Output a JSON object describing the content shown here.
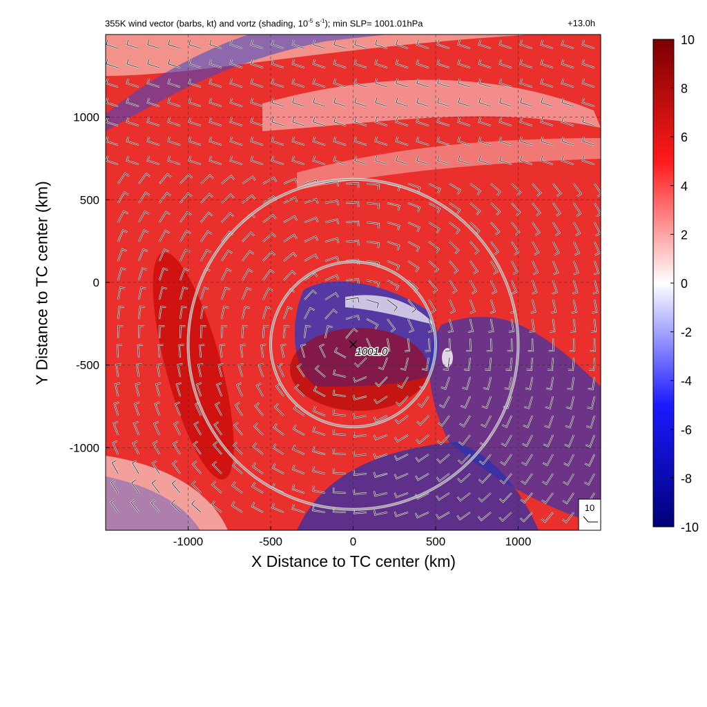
{
  "title": {
    "prefix": "355K wind vector (barbs, kt) and vortz (shading, 10",
    "exp1": "-5",
    "middle": " s",
    "exp2": "-1",
    "suffix": "); min SLP= 1001.01hPa"
  },
  "forecast_hour": "+13.0h",
  "colors": {
    "positive_max": "#7a0000",
    "positive": "#ff1a1a",
    "neutral": "#ffffff",
    "negative": "#1a1aff",
    "negative_max": "#00007a",
    "range_ring": "#9a9a9a"
  },
  "chart_data": {
    "type": "heatmap",
    "xlabel": "X Distance to TC center (km)",
    "ylabel": "Y Distance to TC center (km)",
    "xlim": [
      -1500,
      1500
    ],
    "ylim": [
      -1500,
      1500
    ],
    "xticks": [
      "-1000",
      "-500",
      "0",
      "500",
      "1000"
    ],
    "xtick_values": [
      -1000,
      -500,
      0,
      500,
      1000
    ],
    "yticks": [
      "-1000",
      "-500",
      "0",
      "500",
      "1000"
    ],
    "ytick_values": [
      -1000,
      -500,
      0,
      500,
      1000
    ],
    "grid": true,
    "colorbar": {
      "ticks": [
        "10",
        "8",
        "6",
        "4",
        "2",
        "0",
        "-2",
        "-4",
        "-6",
        "-8",
        "-10"
      ],
      "tick_values": [
        10,
        8,
        6,
        4,
        2,
        0,
        -2,
        -4,
        -6,
        -8,
        -10
      ],
      "range": [
        -10,
        10
      ]
    },
    "center_marker": {
      "label": "1001.0",
      "x": 0,
      "y": -375
    },
    "range_rings_km": [
      500,
      1000
    ],
    "reference_barb": "10"
  }
}
